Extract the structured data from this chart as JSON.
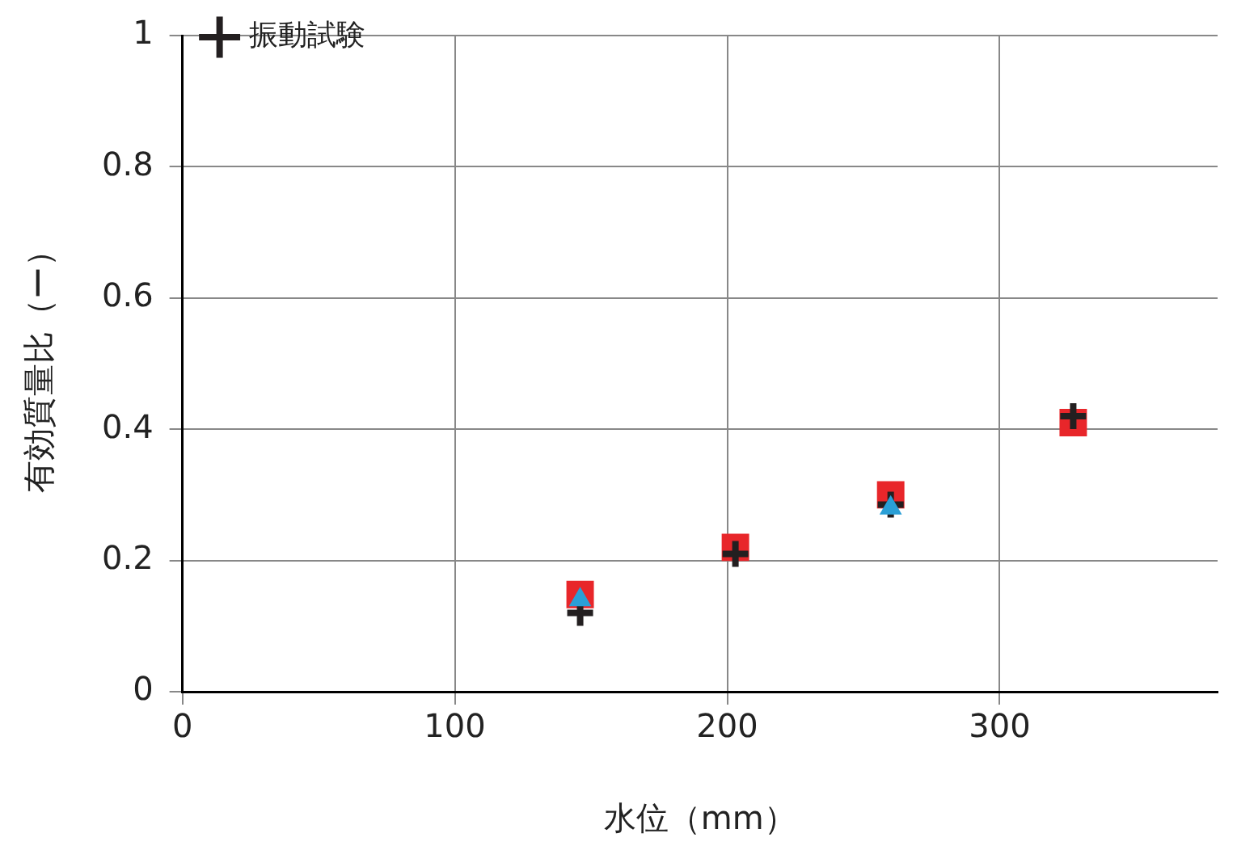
{
  "chart_data": {
    "type": "scatter",
    "xlabel": "水位（mm）",
    "ylabel": "有効質量比（ー）",
    "series": [
      {
        "color": "#e8262a",
        "marker": "square",
        "x": [
          146,
          203,
          260,
          327
        ],
        "values": [
          0.148,
          0.22,
          0.3,
          0.41
        ]
      },
      {
        "name": "振動試験",
        "color": "#231f20",
        "marker": "cross",
        "x": [
          146,
          203,
          260,
          327
        ],
        "values": [
          0.12,
          0.21,
          0.285,
          0.42
        ]
      },
      {
        "color": "#2a9fd6",
        "marker": "triangle",
        "x": [
          146,
          260
        ],
        "values": [
          0.14,
          0.28
        ]
      }
    ],
    "xlim": [
      0,
      380
    ],
    "xticks": [
      0,
      100,
      200,
      300
    ],
    "ylim": [
      0,
      1
    ],
    "yticks": [
      0,
      0.2,
      0.4,
      0.6,
      0.8,
      1
    ],
    "grid": true,
    "legend": "top left"
  }
}
